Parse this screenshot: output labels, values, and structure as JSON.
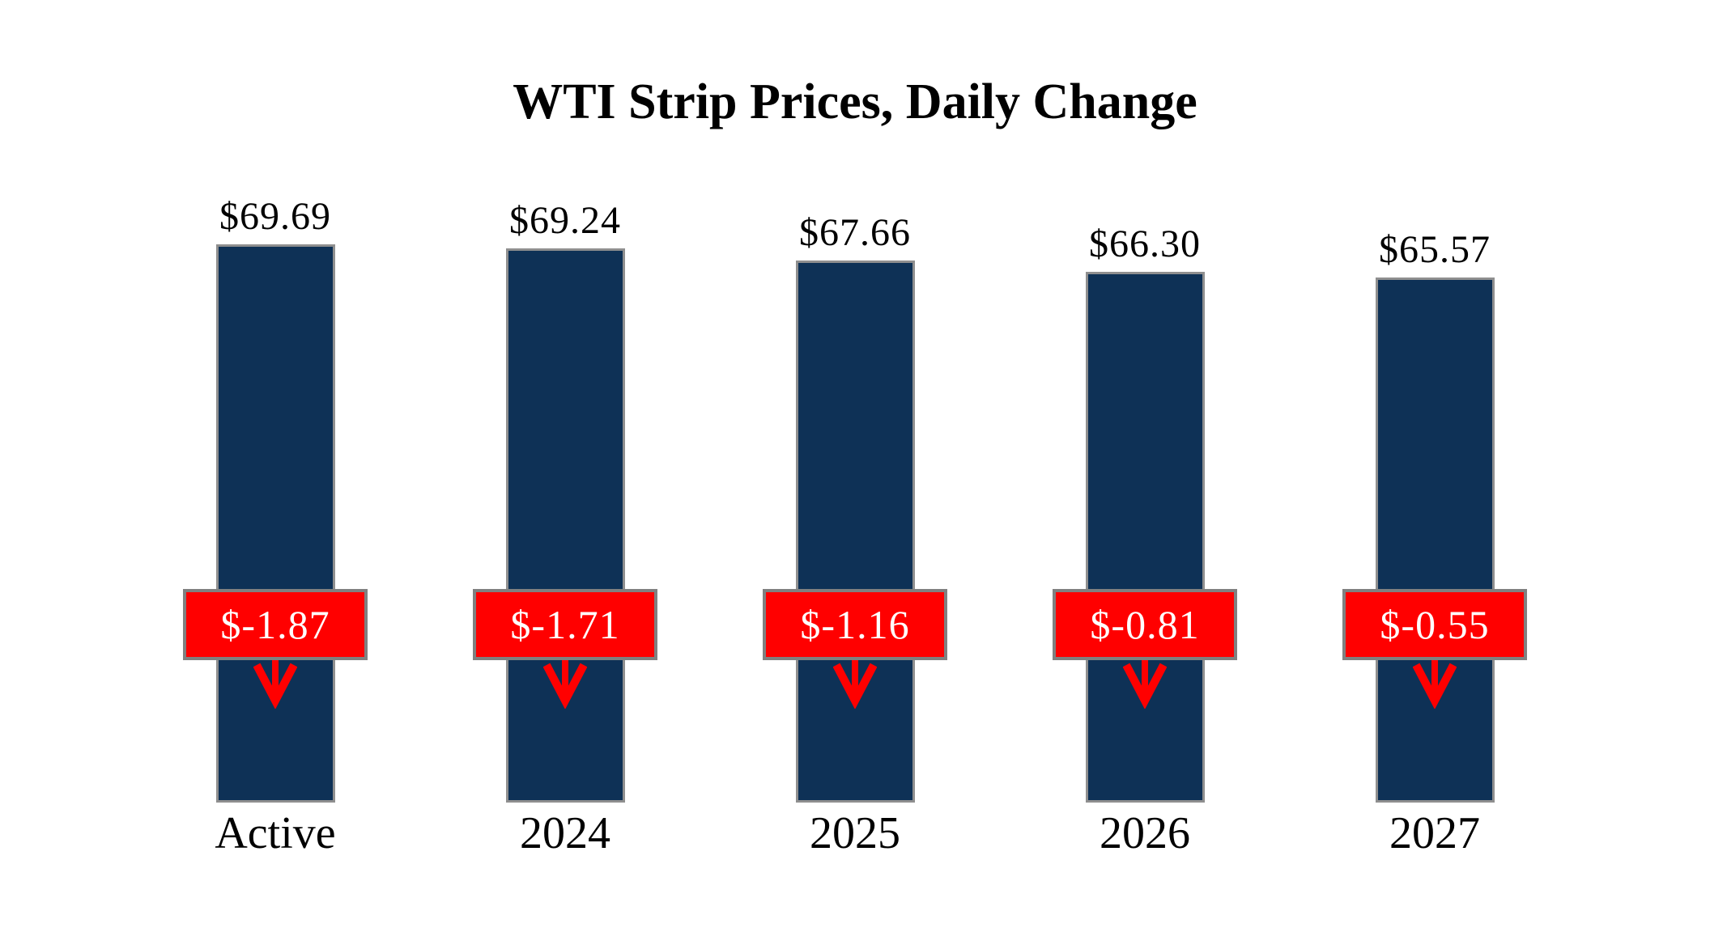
{
  "title": {
    "text": "WTI Strip Prices, Daily Change"
  },
  "colors": {
    "background": "#ffffff",
    "bar_fill": "#0e3156",
    "bar_border": "#8f8f8f",
    "badge_fill": "#ff0000",
    "badge_border": "#808080",
    "badge_text": "#ffffff",
    "arrow": "#ff0000",
    "label_text": "#000000"
  },
  "chart_data": {
    "type": "bar",
    "title": "WTI Strip Prices, Daily Change",
    "categories": [
      "Active",
      "2024",
      "2025",
      "2026",
      "2027"
    ],
    "series": [
      {
        "name": "WTI Strip Price",
        "values": [
          69.69,
          69.24,
          67.66,
          66.3,
          65.57
        ]
      },
      {
        "name": "Daily Change",
        "values": [
          -1.87,
          -1.71,
          -1.16,
          -0.81,
          -0.55
        ]
      }
    ],
    "bars": [
      {
        "category": "Active",
        "price": 69.69,
        "price_label": "$69.69",
        "change": -1.87,
        "change_label": "$-1.87"
      },
      {
        "category": "2024",
        "price": 69.24,
        "price_label": "$69.24",
        "change": -1.71,
        "change_label": "$-1.71"
      },
      {
        "category": "2025",
        "price": 67.66,
        "price_label": "$67.66",
        "change": -1.16,
        "change_label": "$-1.16"
      },
      {
        "category": "2026",
        "price": 66.3,
        "price_label": "$66.30",
        "change": -0.81,
        "change_label": "$-0.81"
      },
      {
        "category": "2027",
        "price": 65.57,
        "price_label": "$65.57",
        "change": -0.55,
        "change_label": "$-0.55"
      }
    ],
    "ylim": [
      0,
      70
    ],
    "grid": false,
    "legend": false,
    "axes_visible": false,
    "annotation_style": "red box with white change value and red down arrow on each bar"
  }
}
